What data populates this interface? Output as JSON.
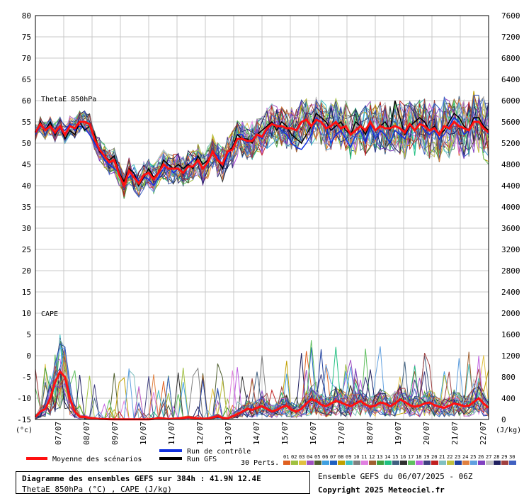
{
  "chart_data": {
    "type": "line",
    "title": "Diagramme des ensembles GEFS sur 384h : 41.9N 12.4E",
    "subtitle": "ThetaE 850hPa (°C) , CAPE (J/kg)",
    "y_left_unit": "(°c)",
    "y_right_unit": "(J/kg)",
    "y_left_ticks": [
      "80",
      "75",
      "70",
      "65",
      "60",
      "55",
      "50",
      "45",
      "40",
      "35",
      "30",
      "25",
      "20",
      "15",
      "10",
      "5",
      "0",
      "-5",
      "-10",
      "-15"
    ],
    "y_right_ticks": [
      "7600",
      "7200",
      "6800",
      "6400",
      "6000",
      "5600",
      "5200",
      "4800",
      "4400",
      "4000",
      "3600",
      "3200",
      "2800",
      "2400",
      "2000",
      "1600",
      "1200",
      "800",
      "400",
      "0"
    ],
    "x_labels": [
      "07/07",
      "08/07",
      "09/07",
      "10/07",
      "11/07",
      "12/07",
      "13/07",
      "14/07",
      "15/07",
      "16/07",
      "17/07",
      "18/07",
      "19/07",
      "20/07",
      "21/07",
      "22/07"
    ],
    "panel_labels": [
      "ThetaE 850hPa",
      "CAPE"
    ],
    "ylim": [
      -15,
      80
    ],
    "thetae_mean": [
      52.5,
      54.5,
      53,
      54,
      52.5,
      54,
      52,
      54,
      53.5,
      55,
      55,
      54.5,
      51,
      48.5,
      47,
      45.5,
      46,
      42.5,
      40,
      43.5,
      42,
      40.5,
      42.5,
      43,
      41.5,
      43,
      45,
      44,
      44,
      44,
      43,
      44.5,
      44.5,
      46,
      44,
      45.5,
      48,
      46,
      45,
      48,
      48.5,
      51,
      51,
      50.5,
      50.5,
      52,
      51.5,
      53.5,
      54.5,
      54,
      54,
      53.5,
      53.5,
      53,
      55,
      55.5,
      54,
      55.5,
      55,
      53.5,
      54,
      55,
      53.5,
      54,
      52,
      53,
      54,
      53,
      55,
      53,
      54,
      53.5,
      53.5,
      54,
      53.5,
      52.5,
      54.5,
      53,
      54.5,
      54,
      53,
      53.5,
      52,
      54,
      53.5,
      55,
      54,
      53.5,
      53,
      55,
      55,
      53.5,
      52.5
    ],
    "thetae_control": [
      52,
      54,
      53.5,
      54,
      52,
      53.5,
      53,
      54.5,
      53,
      54,
      53.5,
      52,
      50,
      48,
      46,
      45,
      44,
      43,
      41,
      42,
      43,
      41,
      42,
      41.5,
      40,
      42,
      44,
      45,
      43,
      44,
      43,
      45,
      46,
      47,
      45,
      46,
      48,
      47,
      44,
      47,
      49,
      52,
      52,
      50,
      51,
      52,
      51,
      53,
      55,
      54,
      53,
      52,
      50,
      49,
      48.5,
      50,
      52,
      56,
      55,
      54,
      50,
      52,
      53,
      51,
      49,
      52,
      53,
      50,
      54,
      51,
      53,
      52,
      50,
      53,
      52,
      51,
      54,
      53,
      55,
      53,
      52,
      53,
      51,
      52,
      54,
      56,
      55,
      52,
      53,
      56,
      55,
      54,
      52
    ],
    "thetae_gfs": [
      52.5,
      55,
      53,
      55,
      52,
      54,
      51,
      53,
      52,
      55,
      53,
      54,
      52,
      48,
      47,
      46,
      47,
      43,
      41,
      44,
      43,
      40,
      42,
      44,
      42,
      43,
      46,
      45,
      44,
      45,
      44,
      45,
      44,
      47,
      45,
      46,
      48,
      46,
      44,
      48,
      49,
      52,
      51,
      51,
      50,
      52,
      53,
      54,
      55,
      53,
      55,
      54,
      52,
      51,
      50,
      52,
      54,
      57,
      56,
      55,
      53,
      54,
      55,
      53,
      52,
      55,
      54,
      52,
      55,
      53,
      54,
      55,
      53,
      60,
      56,
      52,
      54,
      55,
      56,
      55,
      53,
      54,
      52,
      53,
      55,
      57,
      56,
      54,
      53,
      56,
      56,
      54,
      53
    ],
    "cape_mean_jkg": [
      50,
      150,
      200,
      400,
      700,
      900,
      800,
      400,
      150,
      50,
      50,
      30,
      20,
      10,
      8,
      5,
      4,
      3,
      3,
      3,
      3,
      3,
      4,
      4,
      10,
      30,
      20,
      10,
      15,
      20,
      30,
      40,
      30,
      20,
      15,
      20,
      40,
      60,
      30,
      20,
      60,
      100,
      150,
      200,
      180,
      220,
      250,
      200,
      150,
      180,
      230,
      260,
      180,
      150,
      200,
      300,
      380,
      350,
      280,
      250,
      300,
      350,
      320,
      280,
      250,
      300,
      350,
      280,
      240,
      260,
      320,
      300,
      250,
      300,
      380,
      330,
      270,
      240,
      260,
      300,
      320,
      270,
      240,
      220,
      260,
      300,
      280,
      250,
      260,
      330,
      400,
      300,
      220
    ]
  },
  "legend": {
    "mean_label": "Moyenne des scénarios",
    "control_label": "Run de contrôle",
    "gfs_label": "Run GFS",
    "perts_label": "30 Perts.",
    "pert_numbers": [
      "01",
      "02",
      "03",
      "04",
      "05",
      "06",
      "07",
      "08",
      "09",
      "10",
      "11",
      "12",
      "13",
      "14",
      "15",
      "16",
      "17",
      "18",
      "19",
      "20",
      "21",
      "22",
      "23",
      "24",
      "25",
      "26",
      "27",
      "28",
      "29",
      "30"
    ],
    "pert_colors": [
      "#e06020",
      "#a0c040",
      "#e0c040",
      "#a050c0",
      "#506030",
      "#40a0e0",
      "#2060c0",
      "#c0a000",
      "#40c0c0",
      "#808080",
      "#e080e0",
      "#a06030",
      "#40a040",
      "#20c080",
      "#406080",
      "#303030",
      "#60c060",
      "#c060e0",
      "#404080",
      "#c02020",
      "#80c0c0",
      "#c0c040",
      "#2040a0",
      "#e08040",
      "#60a0e0",
      "#8040c0",
      "#c0c0c0",
      "#202060",
      "#a04040",
      "#4060c0"
    ],
    "mean_color": "#ff1010",
    "control_color": "#1030e0",
    "gfs_color": "#000000"
  },
  "footer": {
    "title": "Diagramme des ensembles GEFS sur 384h : 41.9N 12.4E",
    "subtitle": "ThetaE 850hPa (°C) , CAPE (J/kg)",
    "run_info": "Ensemble GEFS du 06/07/2025 - 06Z",
    "copyright": "Copyright 2025 Meteociel.fr"
  }
}
